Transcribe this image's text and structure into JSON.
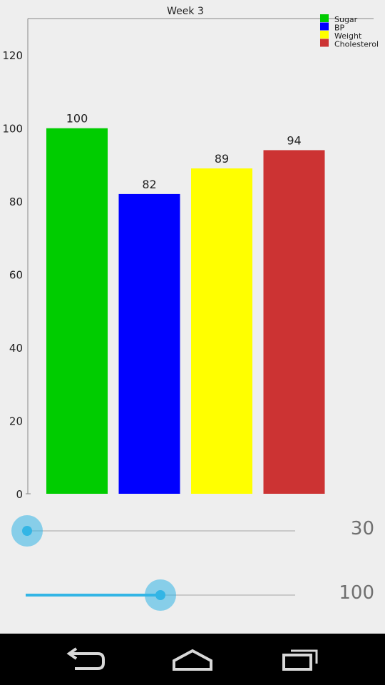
{
  "chart_data": {
    "type": "bar",
    "title": "Week 3",
    "categories": [
      "Sugar",
      "BP",
      "Weight",
      "Cholesterol"
    ],
    "values": [
      100,
      82,
      89,
      94
    ],
    "data_labels": [
      "100",
      "82",
      "89",
      "94"
    ],
    "colors": [
      "#00cc00",
      "#0000ff",
      "#ffff00",
      "#cc3333"
    ],
    "ylim": [
      0,
      130
    ],
    "yticks": [
      0,
      20,
      40,
      60,
      80,
      100,
      120
    ],
    "legend_position": "top-right",
    "grid": false
  },
  "controls": {
    "slider1": {
      "value_text": "30",
      "fraction": 0.0
    },
    "slider2": {
      "value_text": "100",
      "fraction": 0.5
    }
  },
  "navbar": {
    "buttons": [
      "back-icon",
      "home-icon",
      "recent-apps-icon"
    ]
  }
}
